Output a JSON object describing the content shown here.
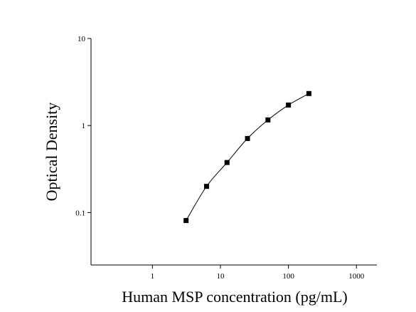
{
  "chart_data": {
    "type": "scatter",
    "x_label": "Human MSP concentration (pg/mL)",
    "y_label": "Optical Density",
    "x": [
      3.125,
      6.25,
      12.5,
      25,
      50,
      100,
      200
    ],
    "series": [
      {
        "color": "#000000",
        "values": [
          0.081,
          0.2,
          0.376,
          0.71,
          1.16,
          1.72,
          2.33
        ]
      }
    ],
    "x_log": true,
    "y_log": true,
    "xlim": [
      0.125,
      2000
    ],
    "ylim": [
      0.025,
      10
    ],
    "xticks": [
      1,
      10,
      100,
      1000
    ],
    "yticks": [
      0.1,
      1,
      10
    ],
    "fit_curve": true
  }
}
